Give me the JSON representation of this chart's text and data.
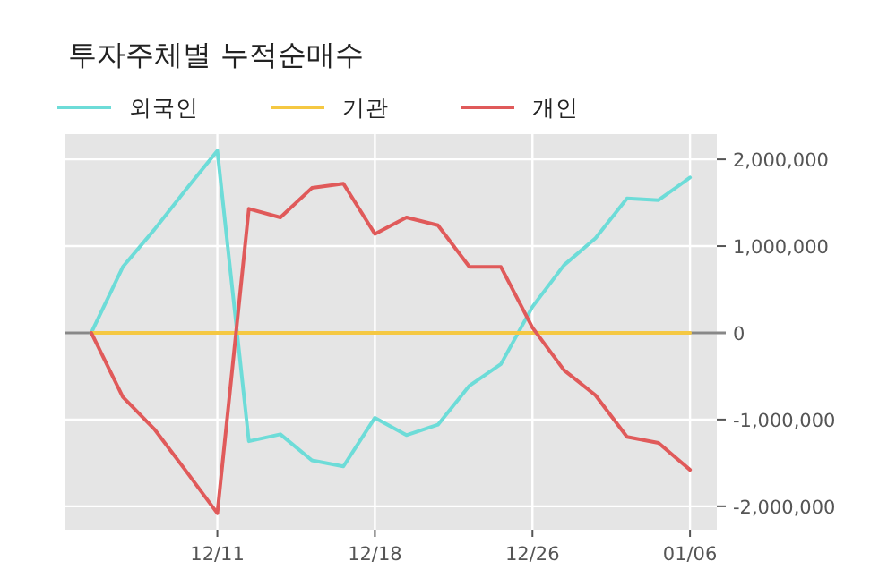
{
  "chart_data": {
    "type": "line",
    "title": "투자주체별 누적순매수",
    "categories": [
      null,
      null,
      null,
      null,
      "12/11",
      null,
      null,
      null,
      null,
      "12/18",
      null,
      null,
      null,
      null,
      "12/26",
      null,
      null,
      null,
      null,
      "01/06"
    ],
    "series": [
      {
        "name": "외국인",
        "color": "#6ddcd8",
        "values": [
          0,
          760000,
          1190000,
          1650000,
          2100000,
          -1250000,
          -1170000,
          -1470000,
          -1540000,
          -980000,
          -1180000,
          -1060000,
          -610000,
          -360000,
          300000,
          780000,
          1090000,
          1550000,
          1530000,
          1790000
        ]
      },
      {
        "name": "기관",
        "color": "#f5c842",
        "values": [
          0,
          0,
          0,
          0,
          0,
          0,
          0,
          0,
          0,
          0,
          0,
          0,
          0,
          0,
          0,
          0,
          0,
          0,
          0,
          0
        ]
      },
      {
        "name": "개인",
        "color": "#e05a5a",
        "values": [
          0,
          -740000,
          -1110000,
          -1590000,
          -2080000,
          1430000,
          1330000,
          1670000,
          1720000,
          1140000,
          1330000,
          1240000,
          760000,
          760000,
          60000,
          -430000,
          -720000,
          -1200000,
          -1270000,
          -1580000
        ]
      }
    ],
    "ylim": [
      -2270000,
      2290000
    ],
    "yticks": [
      {
        "value": -2000000,
        "label": "-2,000,000"
      },
      {
        "value": -1000000,
        "label": "-1,000,000"
      },
      0,
      {
        "value": 1000000,
        "label": "1,000,000"
      },
      {
        "value": 2000000,
        "label": "2,000,000"
      }
    ],
    "ref_lines": [
      {
        "axis": "y",
        "value": 0,
        "color": "#888888"
      }
    ],
    "grid": true,
    "legend": "top left",
    "line_style": "solid",
    "marker": "none"
  }
}
